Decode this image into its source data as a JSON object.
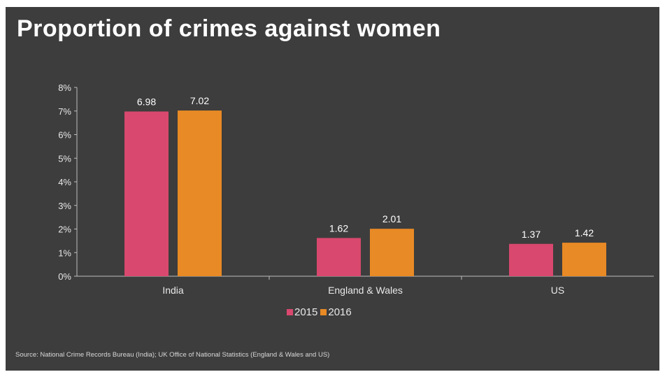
{
  "chart_data": {
    "type": "bar",
    "title": "Proportion of crimes against women",
    "categories": [
      "India",
      "England & Wales",
      "US"
    ],
    "series": [
      {
        "name": "2015",
        "color": "#d9486e",
        "values": [
          6.98,
          1.62,
          1.37
        ],
        "labels": [
          "6.98",
          "1.62",
          "1.37"
        ]
      },
      {
        "name": "2016",
        "color": "#e88a25",
        "values": [
          7.02,
          2.01,
          1.42
        ],
        "labels": [
          "7.02",
          "2.01",
          "1.42"
        ]
      }
    ],
    "ylim": [
      0,
      8
    ],
    "yticks": [
      "0%",
      "1%",
      "2%",
      "3%",
      "4%",
      "5%",
      "6%",
      "7%",
      "8%"
    ],
    "xlabel": "",
    "ylabel": "",
    "legend_position": "bottom-center",
    "grid": false,
    "source": "Source: National Crime Records Bureau (India); UK Office of National Statistics (England & Wales and US)"
  },
  "colors": {
    "background": "#3d3d3d",
    "text": "#e8e8e8",
    "axis": "#bdbdbd"
  }
}
